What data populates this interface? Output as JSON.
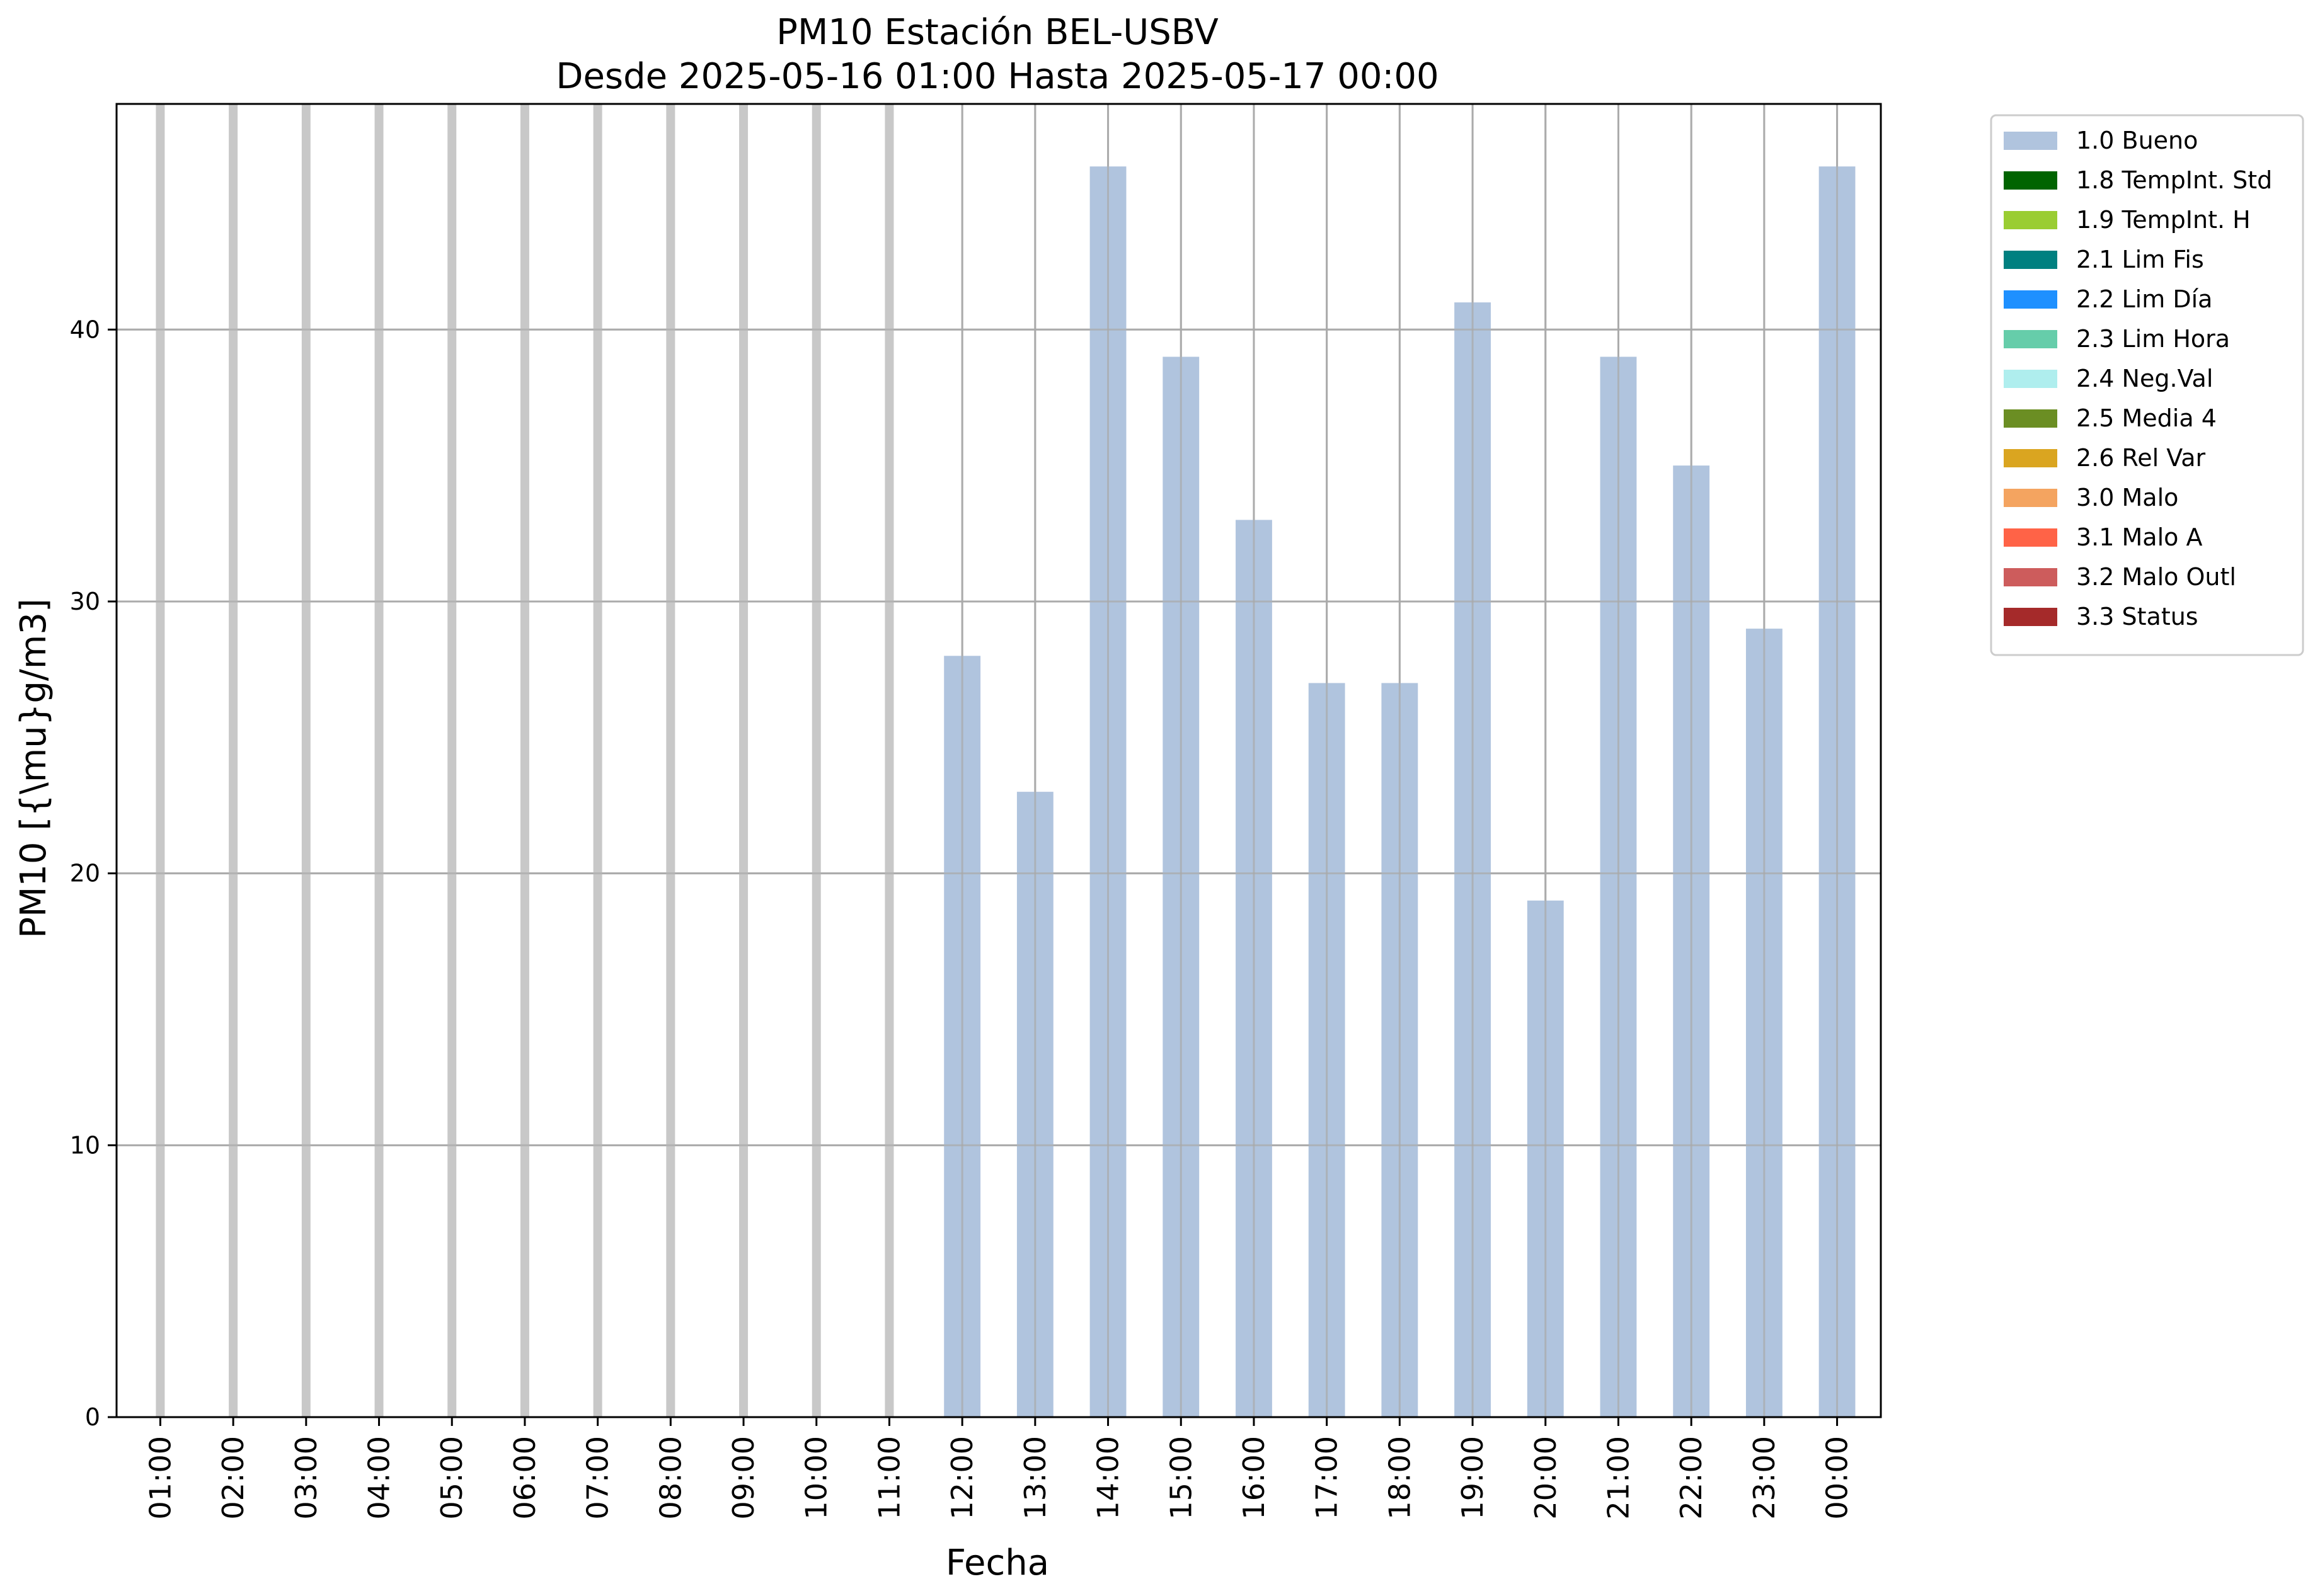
{
  "chart_data": {
    "type": "bar",
    "title": "PM10 Estación BEL-USBV",
    "subtitle": "Desde 2025-05-16 01:00 Hasta 2025-05-17 00:00",
    "xlabel": "Fecha",
    "ylabel": "PM10 [{\\mu}g/m3]",
    "ylim": [
      0,
      48.3
    ],
    "yticks": [
      0,
      10,
      20,
      30,
      40
    ],
    "grid": true,
    "legend_position": "outside-top-right",
    "categories": [
      "01:00",
      "02:00",
      "03:00",
      "04:00",
      "05:00",
      "06:00",
      "07:00",
      "08:00",
      "09:00",
      "10:00",
      "11:00",
      "12:00",
      "13:00",
      "14:00",
      "15:00",
      "16:00",
      "17:00",
      "18:00",
      "19:00",
      "20:00",
      "21:00",
      "22:00",
      "23:00",
      "00:00"
    ],
    "series": [
      {
        "name": "1.0 Bueno",
        "color": "#b0c4de",
        "values": [
          null,
          null,
          null,
          null,
          null,
          null,
          null,
          null,
          null,
          null,
          null,
          28,
          23,
          46,
          39,
          33,
          27,
          27,
          41,
          19,
          39,
          35,
          29,
          46
        ]
      }
    ],
    "legend": [
      {
        "label": "1.0 Bueno",
        "color": "#b0c4de"
      },
      {
        "label": "1.8 TempInt. Std",
        "color": "#006400"
      },
      {
        "label": "1.9 TempInt. H",
        "color": "#9acd32"
      },
      {
        "label": "2.1 Lim Fis",
        "color": "#008080"
      },
      {
        "label": "2.2 Lim Día",
        "color": "#1e90ff"
      },
      {
        "label": "2.3 Lim Hora",
        "color": "#66cdaa"
      },
      {
        "label": "2.4 Neg.Val",
        "color": "#afeeee"
      },
      {
        "label": "2.5 Media 4",
        "color": "#6b8e23"
      },
      {
        "label": "2.6 Rel Var",
        "color": "#daa520"
      },
      {
        "label": "3.0 Malo",
        "color": "#f4a460"
      },
      {
        "label": "3.1 Malo A",
        "color": "#ff6347"
      },
      {
        "label": "3.2 Malo Outl",
        "color": "#cd5c5c"
      },
      {
        "label": "3.3 Status",
        "color": "#a52a2a"
      }
    ]
  }
}
